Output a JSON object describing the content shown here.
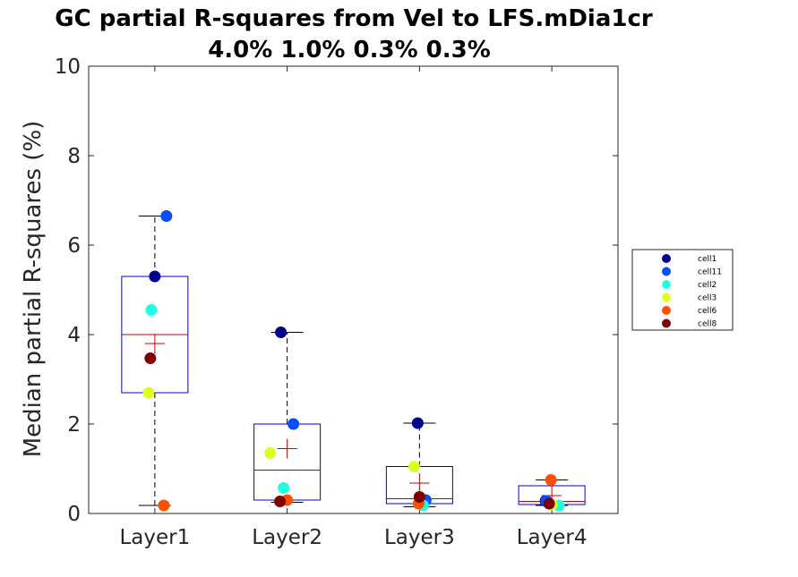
{
  "chart_data": {
    "type": "box",
    "title": "GC partial R-squares from Vel to LFS.mDia1cr",
    "subtitle": "4.0% 1.0% 0.3% 0.3%",
    "ylabel": "Median partial R-squares (%)",
    "xlabel": "",
    "ylim": [
      0,
      10
    ],
    "yticks": [
      "0",
      "2",
      "4",
      "6",
      "8",
      "10"
    ],
    "categories": [
      "Layer1",
      "Layer2",
      "Layer3",
      "Layer4"
    ],
    "boxes": [
      {
        "q1": 2.7,
        "median": 4.0,
        "q3": 5.3,
        "mean": 3.8,
        "whisker_low": 0.18,
        "whisker_high": 6.65
      },
      {
        "q1": 0.3,
        "median": 0.97,
        "q3": 2.0,
        "mean": 1.45,
        "whisker_low": 0.25,
        "whisker_high": 4.05
      },
      {
        "q1": 0.22,
        "median": 0.33,
        "q3": 1.05,
        "mean": 0.68,
        "whisker_low": 0.15,
        "whisker_high": 2.02
      },
      {
        "q1": 0.2,
        "median": 0.27,
        "q3": 0.62,
        "mean": 0.4,
        "whisker_low": 0.18,
        "whisker_high": 0.75
      }
    ],
    "series": [
      {
        "name": "cell1",
        "color": "#00008f",
        "values": [
          5.3,
          4.05,
          2.02,
          0.28
        ]
      },
      {
        "name": "cell11",
        "color": "#0050ff",
        "values": [
          6.65,
          2.0,
          0.3,
          0.28
        ]
      },
      {
        "name": "cell2",
        "color": "#20ffdf",
        "values": [
          4.55,
          0.57,
          0.18,
          0.18
        ]
      },
      {
        "name": "cell3",
        "color": "#dfff20",
        "values": [
          2.7,
          1.35,
          1.05,
          0.2
        ]
      },
      {
        "name": "cell6",
        "color": "#ff5000",
        "values": [
          0.18,
          0.3,
          0.22,
          0.75
        ]
      },
      {
        "name": "cell8",
        "color": "#800000",
        "values": [
          3.47,
          0.27,
          0.37,
          0.22
        ]
      }
    ],
    "box_color": "#0000cc",
    "median_color": "#cc0000",
    "mean_marker": "plus",
    "legend_position": "outside-right",
    "grid": false
  }
}
